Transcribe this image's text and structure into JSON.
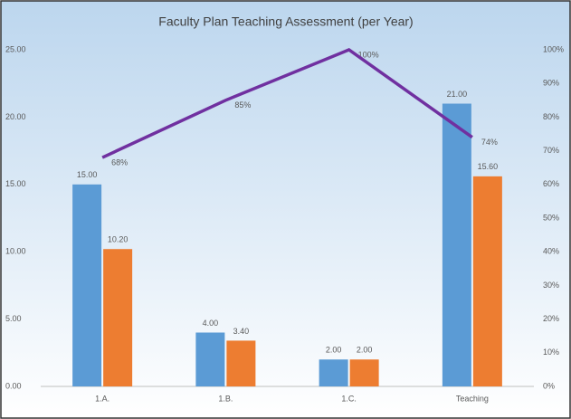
{
  "chart_data": {
    "type": "bar",
    "title": "Faculty Plan Teaching Assessment (per Year)",
    "categories": [
      "1.A.",
      "1.B.",
      "1.C.",
      "Teaching"
    ],
    "series": [
      {
        "color": "#5b9bd5",
        "values": [
          15,
          4,
          2,
          21
        ],
        "value_labels": [
          "15.00",
          "4.00",
          "2.00",
          "21.00"
        ]
      },
      {
        "color": "#ed7d31",
        "values": [
          10.2,
          3.4,
          2,
          15.6
        ],
        "value_labels": [
          "10.20",
          "3.40",
          "2.00",
          "15.60"
        ]
      },
      {
        "type": "line",
        "axis": "y2",
        "color": "#7030a0",
        "values": [
          68,
          85,
          100,
          74
        ],
        "value_labels": [
          "68%",
          "85%",
          "100%",
          "74%"
        ]
      }
    ],
    "ylim": [
      0,
      25
    ],
    "yticks": [
      {
        "value": 0,
        "label": "0.00"
      },
      {
        "value": 5,
        "label": "5.00"
      },
      {
        "value": 10,
        "label": "10.00"
      },
      {
        "value": 15,
        "label": "15.00"
      },
      {
        "value": 20,
        "label": "20.00"
      },
      {
        "value": 25,
        "label": "25.00"
      }
    ],
    "y2lim": [
      0,
      100
    ],
    "y2ticks": [
      {
        "value": 0,
        "label": "0%"
      },
      {
        "value": 10,
        "label": "10%"
      },
      {
        "value": 20,
        "label": "20%"
      },
      {
        "value": 30,
        "label": "30%"
      },
      {
        "value": 40,
        "label": "40%"
      },
      {
        "value": 50,
        "label": "50%"
      },
      {
        "value": 60,
        "label": "60%"
      },
      {
        "value": 70,
        "label": "70%"
      },
      {
        "value": 80,
        "label": "80%"
      },
      {
        "value": 90,
        "label": "90%"
      },
      {
        "value": 100,
        "label": "100%"
      }
    ]
  }
}
